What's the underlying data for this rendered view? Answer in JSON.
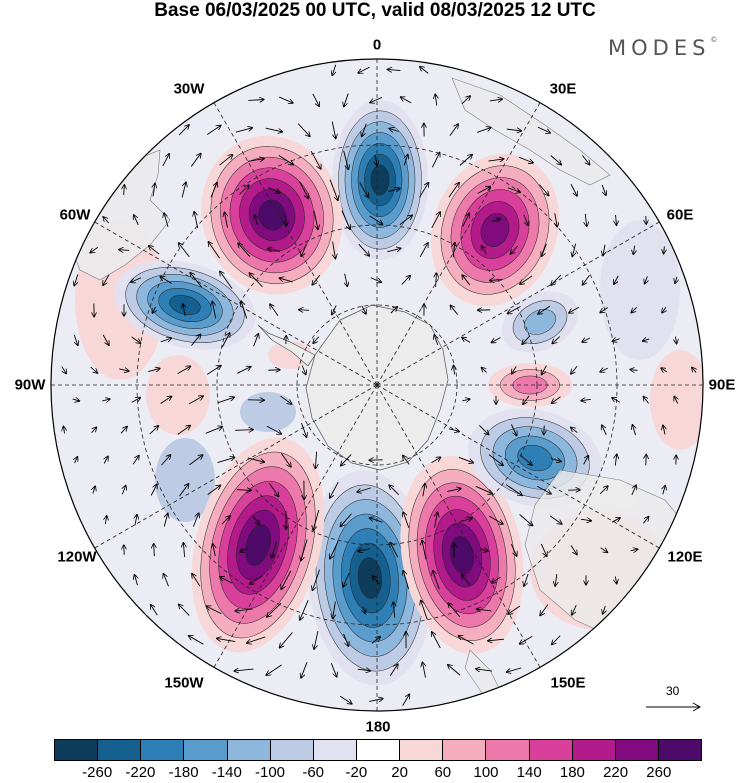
{
  "title": "Base 06/03/2025 00 UTC, valid 08/03/2025 12 UTC",
  "brand": "MODES",
  "brand_mark": "©",
  "map": {
    "projection": "south-polar-stereographic",
    "longitude_labels": {
      "top": "0",
      "upper_left": "30W",
      "upper_right": "30E",
      "left_upper": "60W",
      "right_upper": "60E",
      "left": "90W",
      "right": "90E",
      "left_lower": "120W",
      "right_lower": "120E",
      "lower_left": "150W",
      "lower_right": "150E",
      "bottom": "180"
    },
    "reference_vector_label": "30",
    "anomaly_centers": [
      {
        "name": "center-0",
        "sign": "negative",
        "value": -260
      },
      {
        "name": "center-30w",
        "sign": "positive",
        "value": 260
      },
      {
        "name": "center-45e",
        "sign": "positive",
        "value": 220
      },
      {
        "name": "center-60w",
        "sign": "negative",
        "value": -220
      },
      {
        "name": "center-180",
        "sign": "negative",
        "value": -260
      },
      {
        "name": "center-135w",
        "sign": "positive",
        "value": 260
      },
      {
        "name": "center-150e",
        "sign": "positive",
        "value": 260
      },
      {
        "name": "center-110e",
        "sign": "negative",
        "value": -180
      },
      {
        "name": "center-80e",
        "sign": "positive",
        "value": 100
      },
      {
        "name": "center-60e",
        "sign": "negative",
        "value": -100
      }
    ]
  },
  "colorbar": {
    "colors": [
      "#0e3d5c",
      "#15608f",
      "#2d7fb6",
      "#5a9ccb",
      "#8db7dc",
      "#bdcbe4",
      "#e2e1ef",
      "#ffffff",
      "#f8d7d9",
      "#f4aebf",
      "#ec79a9",
      "#d9409b",
      "#b31a8a",
      "#7f0b7e",
      "#4d0a68"
    ],
    "tick_labels": [
      "-260",
      "-220",
      "-180",
      "-140",
      "-100",
      "-60",
      "-20",
      "20",
      "60",
      "100",
      "140",
      "180",
      "220",
      "260"
    ]
  }
}
